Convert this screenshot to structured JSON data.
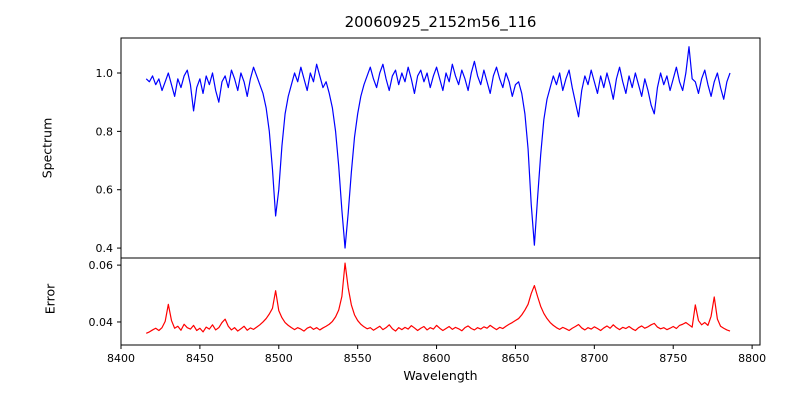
{
  "chart_data": {
    "type": "line",
    "title": "20060925_2152m56_116",
    "x_label": "Wavelength",
    "x_lim": [
      8400,
      8805
    ],
    "x_ticks": [
      8400,
      8450,
      8500,
      8550,
      8600,
      8650,
      8700,
      8750,
      8800
    ],
    "x_tick_labels": [
      "8400",
      "8450",
      "8500",
      "8550",
      "8600",
      "8650",
      "8700",
      "8750",
      "8800"
    ],
    "grid": false,
    "legend": "none",
    "wavelengths": [
      8416,
      8418,
      8420,
      8422,
      8424,
      8426,
      8428,
      8430,
      8432,
      8434,
      8436,
      8438,
      8440,
      8442,
      8444,
      8446,
      8448,
      8450,
      8452,
      8454,
      8456,
      8458,
      8460,
      8462,
      8464,
      8466,
      8468,
      8470,
      8472,
      8474,
      8476,
      8478,
      8480,
      8482,
      8484,
      8486,
      8488,
      8490,
      8492,
      8494,
      8496,
      8498,
      8500,
      8502,
      8504,
      8506,
      8508,
      8510,
      8512,
      8514,
      8516,
      8518,
      8520,
      8522,
      8524,
      8526,
      8528,
      8530,
      8532,
      8534,
      8536,
      8538,
      8540,
      8542,
      8544,
      8546,
      8548,
      8550,
      8552,
      8554,
      8556,
      8558,
      8560,
      8562,
      8564,
      8566,
      8568,
      8570,
      8572,
      8574,
      8576,
      8578,
      8580,
      8582,
      8584,
      8586,
      8588,
      8590,
      8592,
      8594,
      8596,
      8598,
      8600,
      8602,
      8604,
      8606,
      8608,
      8610,
      8612,
      8614,
      8616,
      8618,
      8620,
      8622,
      8624,
      8626,
      8628,
      8630,
      8632,
      8634,
      8636,
      8638,
      8640,
      8642,
      8644,
      8646,
      8648,
      8650,
      8652,
      8654,
      8656,
      8658,
      8660,
      8662,
      8664,
      8666,
      8668,
      8670,
      8672,
      8674,
      8676,
      8678,
      8680,
      8682,
      8684,
      8686,
      8688,
      8690,
      8692,
      8694,
      8696,
      8698,
      8700,
      8702,
      8704,
      8706,
      8708,
      8710,
      8712,
      8714,
      8716,
      8718,
      8720,
      8722,
      8724,
      8726,
      8728,
      8730,
      8732,
      8734,
      8736,
      8738,
      8740,
      8742,
      8744,
      8746,
      8748,
      8750,
      8752,
      8754,
      8756,
      8758,
      8760,
      8762,
      8764,
      8766,
      8768,
      8770,
      8772,
      8774,
      8776,
      8778,
      8780,
      8782,
      8784,
      8786
    ],
    "panels": [
      {
        "name": "spectrum",
        "y_label": "Spectrum",
        "y_lim": [
          0.366,
          1.12
        ],
        "y_ticks": [
          1.0,
          0.8,
          0.6,
          0.4
        ],
        "y_tick_labels": [
          "1.0",
          "0.8",
          "0.6",
          "0.4"
        ],
        "line_color": "#0000ff",
        "absorption_line_centers": [
          8498,
          8542,
          8662
        ],
        "values": [
          0.98,
          0.97,
          0.99,
          0.96,
          0.98,
          0.94,
          0.97,
          1.0,
          0.96,
          0.92,
          0.98,
          0.95,
          0.99,
          1.01,
          0.96,
          0.87,
          0.95,
          0.98,
          0.93,
          0.99,
          0.96,
          1.0,
          0.94,
          0.9,
          0.97,
          0.99,
          0.95,
          1.01,
          0.98,
          0.94,
          1.0,
          0.97,
          0.92,
          0.98,
          1.02,
          0.99,
          0.96,
          0.93,
          0.88,
          0.8,
          0.67,
          0.51,
          0.6,
          0.75,
          0.86,
          0.92,
          0.96,
          1.0,
          0.97,
          1.02,
          0.98,
          0.94,
          1.0,
          0.97,
          1.03,
          0.99,
          0.95,
          0.97,
          0.93,
          0.88,
          0.8,
          0.68,
          0.53,
          0.4,
          0.52,
          0.66,
          0.78,
          0.86,
          0.92,
          0.96,
          0.99,
          1.02,
          0.98,
          0.95,
          1.0,
          1.03,
          0.98,
          0.94,
          0.99,
          1.01,
          0.96,
          1.0,
          0.97,
          1.02,
          0.98,
          0.93,
          0.99,
          1.01,
          0.97,
          1.0,
          0.95,
          0.99,
          1.02,
          0.98,
          0.94,
          1.0,
          0.97,
          1.03,
          0.99,
          0.96,
          1.01,
          0.98,
          0.94,
          1.0,
          1.04,
          0.99,
          0.96,
          1.01,
          0.97,
          0.93,
          0.99,
          1.02,
          0.98,
          0.95,
          1.0,
          0.97,
          0.92,
          0.96,
          0.97,
          0.93,
          0.86,
          0.74,
          0.55,
          0.41,
          0.57,
          0.72,
          0.84,
          0.91,
          0.95,
          0.99,
          0.96,
          1.0,
          0.94,
          0.98,
          1.01,
          0.95,
          0.9,
          0.85,
          0.94,
          0.99,
          0.96,
          1.01,
          0.97,
          0.93,
          0.99,
          0.95,
          1.0,
          0.96,
          0.91,
          0.98,
          1.02,
          0.97,
          0.93,
          0.99,
          0.95,
          1.0,
          0.96,
          0.92,
          0.98,
          0.94,
          0.89,
          0.86,
          0.95,
          1.0,
          0.96,
          0.99,
          0.94,
          0.98,
          1.02,
          0.97,
          0.94,
          1.0,
          1.09,
          0.98,
          0.97,
          0.93,
          0.98,
          1.01,
          0.96,
          0.92,
          0.97,
          1.0,
          0.95,
          0.91,
          0.97,
          1.0
        ]
      },
      {
        "name": "error",
        "y_label": "Error",
        "y_lim": [
          0.0319,
          0.0625
        ],
        "y_ticks": [
          0.06,
          0.04
        ],
        "y_tick_labels": [
          "0.06",
          "0.04"
        ],
        "line_color": "#ff0000",
        "peak_centers": [
          8430,
          8498,
          8542,
          8662,
          8764,
          8776
        ],
        "values": [
          0.036,
          0.0365,
          0.0372,
          0.0378,
          0.037,
          0.038,
          0.0402,
          0.0462,
          0.0405,
          0.0378,
          0.0385,
          0.0371,
          0.0392,
          0.038,
          0.0375,
          0.0388,
          0.037,
          0.0378,
          0.0365,
          0.0382,
          0.0375,
          0.039,
          0.0372,
          0.038,
          0.0398,
          0.041,
          0.0385,
          0.0372,
          0.038,
          0.0368,
          0.0376,
          0.0385,
          0.0371,
          0.0379,
          0.0374,
          0.0382,
          0.039,
          0.04,
          0.0412,
          0.0428,
          0.0448,
          0.051,
          0.044,
          0.0415,
          0.0398,
          0.0388,
          0.038,
          0.0373,
          0.038,
          0.0375,
          0.0368,
          0.0378,
          0.0383,
          0.0374,
          0.038,
          0.0372,
          0.0379,
          0.0385,
          0.0392,
          0.0402,
          0.0418,
          0.0442,
          0.049,
          0.0607,
          0.052,
          0.046,
          0.0425,
          0.0405,
          0.0392,
          0.0383,
          0.0376,
          0.038,
          0.0371,
          0.0378,
          0.0385,
          0.0373,
          0.038,
          0.039,
          0.0376,
          0.0368,
          0.038,
          0.0373,
          0.0381,
          0.0375,
          0.0387,
          0.0379,
          0.037,
          0.0378,
          0.0384,
          0.0372,
          0.038,
          0.0375,
          0.0388,
          0.0378,
          0.037,
          0.0377,
          0.0384,
          0.0374,
          0.0381,
          0.0376,
          0.0369,
          0.038,
          0.0386,
          0.0377,
          0.0372,
          0.038,
          0.0375,
          0.0383,
          0.0378,
          0.0388,
          0.038,
          0.0373,
          0.0381,
          0.0377,
          0.0385,
          0.0392,
          0.0398,
          0.0405,
          0.0412,
          0.0425,
          0.0442,
          0.0462,
          0.05,
          0.0528,
          0.049,
          0.0455,
          0.043,
          0.0412,
          0.0398,
          0.0388,
          0.038,
          0.0374,
          0.0381,
          0.0376,
          0.037,
          0.0378,
          0.0384,
          0.0391,
          0.0379,
          0.0372,
          0.038,
          0.0375,
          0.0383,
          0.0377,
          0.037,
          0.0379,
          0.0386,
          0.0378,
          0.039,
          0.038,
          0.0373,
          0.0381,
          0.0377,
          0.0384,
          0.0376,
          0.037,
          0.038,
          0.0386,
          0.0378,
          0.0383,
          0.039,
          0.0395,
          0.0382,
          0.0376,
          0.038,
          0.0373,
          0.0378,
          0.0384,
          0.0377,
          0.0388,
          0.0392,
          0.0398,
          0.039,
          0.0382,
          0.046,
          0.0405,
          0.039,
          0.0398,
          0.0388,
          0.042,
          0.0488,
          0.041,
          0.0385,
          0.0378,
          0.0372,
          0.0368
        ]
      }
    ],
    "colors": {
      "spectrum_line": "#0000ff",
      "error_line": "#ff0000",
      "axis": "#000000",
      "background": "#ffffff"
    }
  }
}
